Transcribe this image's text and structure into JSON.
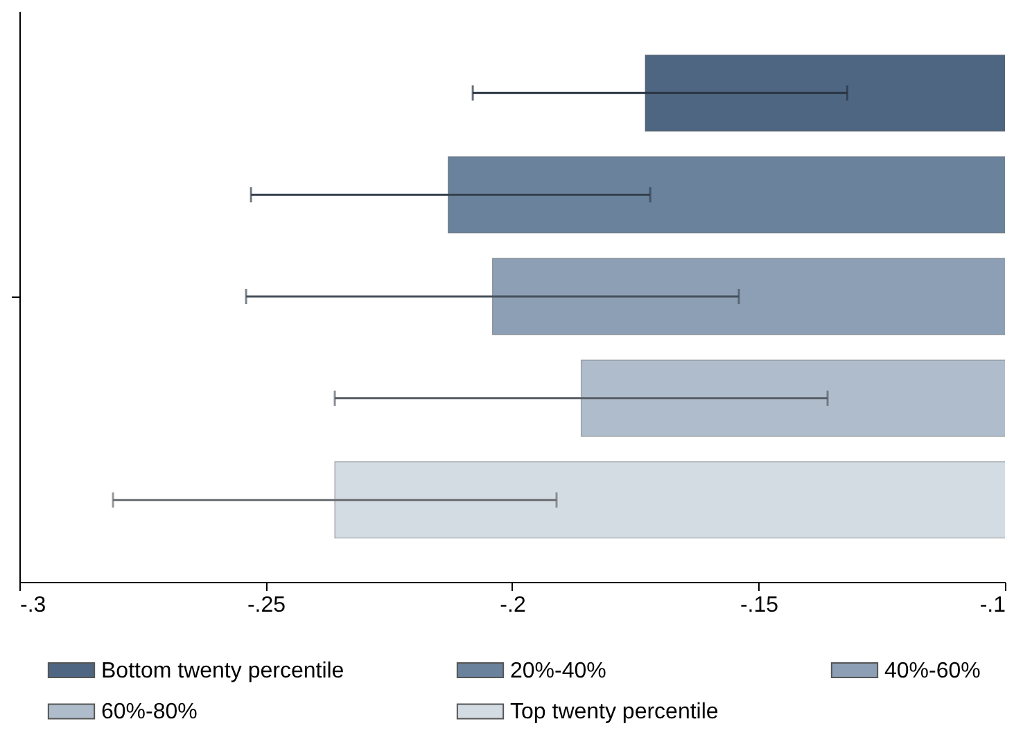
{
  "chart_data": {
    "type": "bar",
    "orientation": "horizontal",
    "categories": [
      null
    ],
    "series": [
      {
        "name": "Bottom twenty percentile",
        "color": "#4f6682",
        "values": [
          -0.173
        ],
        "errors": [
          [
            -0.208,
            -0.132
          ]
        ]
      },
      {
        "name": "20%-40%",
        "color": "#6a829c",
        "values": [
          -0.213
        ],
        "errors": [
          [
            -0.253,
            -0.172
          ]
        ]
      },
      {
        "name": "40%-60%",
        "color": "#8c9fb5",
        "values": [
          -0.204
        ],
        "errors": [
          [
            -0.254,
            -0.154
          ]
        ]
      },
      {
        "name": "60%-80%",
        "color": "#afbccb",
        "values": [
          -0.186
        ],
        "errors": [
          [
            -0.236,
            -0.136
          ]
        ]
      },
      {
        "name": "Top twenty percentile",
        "color": "#d3dbe3",
        "values": [
          -0.236
        ],
        "errors": [
          [
            -0.281,
            -0.191
          ]
        ]
      }
    ],
    "xlim": [
      -0.3,
      -0.1
    ],
    "xticks": [
      {
        "value": -0.3,
        "label": "-.3"
      },
      {
        "value": -0.25,
        "label": "-.25"
      },
      {
        "value": -0.2,
        "label": "-.2"
      },
      {
        "value": -0.15,
        "label": "-.15"
      },
      {
        "value": -0.1,
        "label": "-.1"
      }
    ],
    "grid": false,
    "legend": "bottom"
  }
}
